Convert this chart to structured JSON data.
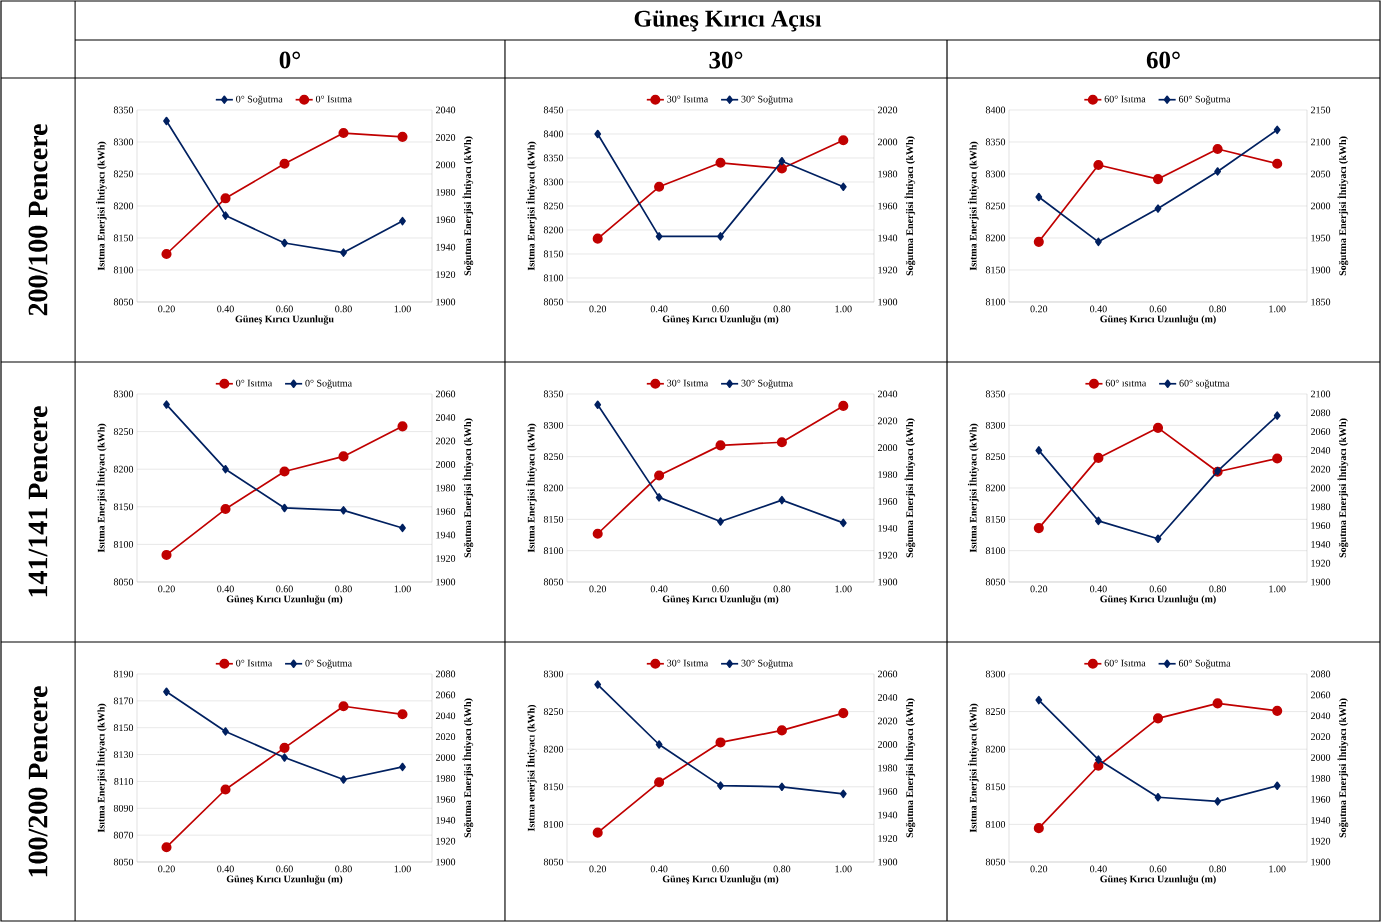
{
  "chart_data": [
    {
      "type": "other",
      "title": "Güneş Kırıcı Açısı",
      "annotations": [
        "0°",
        "30°",
        "60°",
        "200/100 Pencere",
        "141/141 Pencere",
        "100/200 Pencere"
      ]
    },
    {
      "type": "line",
      "xlabel": "Güneş Kırıcı Uzunluğu",
      "ylabel": "Isıtma Enerjisi İhtiyacı (kWh)",
      "y2label": "Soğutma Enerjisi İhtiyacı (kWh)",
      "categories": [
        "0.20",
        "0.40",
        "0.60",
        "0.80",
        "1.00"
      ],
      "ylim": [
        8050,
        8350
      ],
      "yticks": [
        8050,
        8100,
        8150,
        8200,
        8250,
        8300,
        8350
      ],
      "y2lim": [
        1900,
        2040
      ],
      "y2ticks": [
        1900,
        1920,
        1940,
        1960,
        1980,
        2000,
        2020,
        2040
      ],
      "grid": "y",
      "legend": "top",
      "series": [
        {
          "name": "0° Soğutma",
          "color": "#002060",
          "marker": "diamond",
          "axis": "y2",
          "values": [
            2032,
            1963,
            1943,
            1936,
            1959
          ]
        },
        {
          "name": "0° Isıtma",
          "color": "#c00000",
          "marker": "circle",
          "values": [
            8125,
            8212,
            8266,
            8314,
            8308
          ]
        }
      ]
    },
    {
      "type": "line",
      "xlabel": "Güneş Kırıcı Uzunluğu (m)",
      "ylabel": "Isıtma Enerjisi İhtiyacı (kWh)",
      "y2label": "Soğutma Enerjisi İhtiyacı (kWh)",
      "categories": [
        "0.20",
        "0.40",
        "0.60",
        "0.80",
        "1.00"
      ],
      "ylim": [
        8050,
        8450
      ],
      "yticks": [
        8050,
        8100,
        8150,
        8200,
        8250,
        8300,
        8350,
        8400,
        8450
      ],
      "y2lim": [
        1900,
        2020
      ],
      "y2ticks": [
        1900,
        1920,
        1940,
        1960,
        1980,
        2000,
        2020
      ],
      "grid": "y",
      "legend": "top",
      "series": [
        {
          "name": "30° Isıtma",
          "color": "#c00000",
          "marker": "circle",
          "values": [
            8182,
            8290,
            8340,
            8328,
            8387
          ]
        },
        {
          "name": "30° Soğutma",
          "color": "#002060",
          "marker": "diamond",
          "axis": "y2",
          "values": [
            2005,
            1941,
            1941,
            1988,
            1972
          ]
        }
      ]
    },
    {
      "type": "line",
      "xlabel": "Güneş Kırıcı Uzunluğu (m)",
      "ylabel": "Isıtma Enerjisi İhtiyacı (kWh)",
      "y2label": "Soğutma Enerjisi İhtiyacı (kWh)",
      "categories": [
        "0.20",
        "0.40",
        "0.60",
        "0.80",
        "1.00"
      ],
      "ylim": [
        8100,
        8400
      ],
      "yticks": [
        8100,
        8150,
        8200,
        8250,
        8300,
        8350,
        8400
      ],
      "y2lim": [
        1850,
        2150
      ],
      "y2ticks": [
        1850,
        1900,
        1950,
        2000,
        2050,
        2100,
        2150
      ],
      "grid": "y",
      "legend": "top",
      "series": [
        {
          "name": "60° Isıtma",
          "color": "#c00000",
          "marker": "circle",
          "values": [
            8194,
            8314,
            8292,
            8339,
            8316
          ]
        },
        {
          "name": "60° Soğutma",
          "color": "#002060",
          "marker": "diamond",
          "axis": "y2",
          "values": [
            2014,
            1944,
            1996,
            2054,
            2119
          ]
        }
      ]
    },
    {
      "type": "line",
      "xlabel": "Güneş Kırıcı Uzunluğu (m)",
      "ylabel": "Isıtma Enerjisi İhtiyacı (kWh)",
      "y2label": "Soğutma Enerjisi İhtiyacı (kWh)",
      "categories": [
        "0.20",
        "0.40",
        "0.60",
        "0.80",
        "1.00"
      ],
      "ylim": [
        8050,
        8300
      ],
      "yticks": [
        8050,
        8100,
        8150,
        8200,
        8250,
        8300
      ],
      "y2lim": [
        1900,
        2060
      ],
      "y2ticks": [
        1900,
        1920,
        1940,
        1960,
        1980,
        2000,
        2020,
        2040,
        2060
      ],
      "grid": "y",
      "legend": "top",
      "series": [
        {
          "name": "0° Isıtma",
          "color": "#c00000",
          "marker": "circle",
          "values": [
            8086,
            8147,
            8197,
            8217,
            8257
          ]
        },
        {
          "name": "0° Soğutma",
          "color": "#002060",
          "marker": "diamond",
          "axis": "y2",
          "values": [
            2051,
            1996,
            1963,
            1961,
            1946
          ]
        }
      ]
    },
    {
      "type": "line",
      "xlabel": "Güneş Kırıcı Uzunluğu (m)",
      "ylabel": "Isıtma Enerjisi İhtiyacı (kWh)",
      "y2label": "Soğutma Enerjisi İhtiyacı (kWh)",
      "categories": [
        "0.20",
        "0.40",
        "0.60",
        "0.80",
        "1.00"
      ],
      "ylim": [
        8050,
        8350
      ],
      "yticks": [
        8050,
        8100,
        8150,
        8200,
        8250,
        8300,
        8350
      ],
      "y2lim": [
        1900,
        2040
      ],
      "y2ticks": [
        1900,
        1920,
        1940,
        1960,
        1980,
        2000,
        2020,
        2040
      ],
      "grid": "y",
      "legend": "top",
      "series": [
        {
          "name": "30° Isıtma",
          "color": "#c00000",
          "marker": "circle",
          "values": [
            8127,
            8220,
            8268,
            8273,
            8331
          ]
        },
        {
          "name": "30° Soğutma",
          "color": "#002060",
          "marker": "diamond",
          "axis": "y2",
          "values": [
            2032,
            1963,
            1945,
            1961,
            1944
          ]
        }
      ]
    },
    {
      "type": "line",
      "xlabel": "Güneş Kırıcı Uzunluğu (m)",
      "ylabel": "Isıtma Enerjisi İhtiyacı (kWh)",
      "y2label": "Soğutma Enerjisi İhtiyacı (kWh)",
      "categories": [
        "0.20",
        "0.40",
        "0.60",
        "0.80",
        "1.00"
      ],
      "ylim": [
        8050,
        8350
      ],
      "yticks": [
        8050,
        8100,
        8150,
        8200,
        8250,
        8300,
        8350
      ],
      "y2lim": [
        1900,
        2100
      ],
      "y2ticks": [
        1900,
        1920,
        1940,
        1960,
        1980,
        2000,
        2020,
        2040,
        2060,
        2080,
        2100
      ],
      "grid": "y",
      "legend": "top",
      "series": [
        {
          "name": "60° ısıtma",
          "color": "#c00000",
          "marker": "circle",
          "values": [
            8136,
            8248,
            8296,
            8226,
            8247
          ]
        },
        {
          "name": "60° soğutma",
          "color": "#002060",
          "marker": "diamond",
          "axis": "y2",
          "values": [
            2040,
            1965,
            1946,
            2018,
            2077
          ]
        }
      ]
    },
    {
      "type": "line",
      "xlabel": "Güneş Kırıcı Uzunluğu (m)",
      "ylabel": "Isıtma Enerjisi İhtiyacı (kWh)",
      "y2label": "Soğutma Enerjisi İhtiyacı (kWh)",
      "categories": [
        "0.20",
        "0.40",
        "0.60",
        "0.80",
        "1.00"
      ],
      "ylim": [
        8050,
        8190
      ],
      "yticks": [
        8050,
        8070,
        8090,
        8110,
        8130,
        8150,
        8170,
        8190
      ],
      "y2lim": [
        1900,
        2080
      ],
      "y2ticks": [
        1900,
        1920,
        1940,
        1960,
        1980,
        2000,
        2020,
        2040,
        2060,
        2080
      ],
      "grid": "y",
      "legend": "top",
      "series": [
        {
          "name": "0° Isıtma",
          "color": "#c00000",
          "marker": "circle",
          "values": [
            8061,
            8104,
            8135,
            8166,
            8160
          ]
        },
        {
          "name": "0° Soğutma",
          "color": "#002060",
          "marker": "diamond",
          "axis": "y2",
          "values": [
            2063,
            2025,
            2000,
            1979,
            1991
          ]
        }
      ]
    },
    {
      "type": "line",
      "xlabel": "Güneş Kırıcı Uzunluğu (m)",
      "ylabel": "Isıtma enerjisi İhtiyacı (kWh)",
      "y2label": "Soğutma Enerjisi İhtiyacı (kWh)",
      "categories": [
        "0.20",
        "0.40",
        "0.60",
        "0.80",
        "1.00"
      ],
      "ylim": [
        8050,
        8300
      ],
      "yticks": [
        8050,
        8100,
        8150,
        8200,
        8250,
        8300
      ],
      "y2lim": [
        1900,
        2060
      ],
      "y2ticks": [
        1900,
        1920,
        1940,
        1960,
        1980,
        2000,
        2020,
        2040,
        2060
      ],
      "grid": "y",
      "legend": "top",
      "series": [
        {
          "name": "30° Isıtma",
          "color": "#c00000",
          "marker": "circle",
          "values": [
            8089,
            8156,
            8209,
            8225,
            8248
          ]
        },
        {
          "name": "30° Soğutma",
          "color": "#002060",
          "marker": "diamond",
          "axis": "y2",
          "values": [
            2051,
            2000,
            1965,
            1964,
            1958
          ]
        }
      ]
    },
    {
      "type": "line",
      "xlabel": "Güneş Kırıcı Uzunluğu (m)",
      "ylabel": "Isıtma Enerjisi İhtiyacı (kWh)",
      "y2label": "Soğutma Enerjisi İhtiyacı (kWh)",
      "categories": [
        "0.20",
        "0.40",
        "0.60",
        "0.80",
        "1.00"
      ],
      "ylim": [
        8050,
        8300
      ],
      "yticks": [
        8050,
        8100,
        8150,
        8200,
        8250,
        8300
      ],
      "y2lim": [
        1900,
        2080
      ],
      "y2ticks": [
        1900,
        1920,
        1940,
        1960,
        1980,
        2000,
        2020,
        2040,
        2060,
        2080
      ],
      "grid": "y",
      "legend": "top",
      "series": [
        {
          "name": "60° Isıtma",
          "color": "#c00000",
          "marker": "circle",
          "values": [
            8095,
            8178,
            8241,
            8261,
            8251
          ]
        },
        {
          "name": "60° Soğutma",
          "color": "#002060",
          "marker": "diamond",
          "axis": "y2",
          "values": [
            2055,
            1998,
            1962,
            1958,
            1973
          ]
        }
      ]
    }
  ]
}
